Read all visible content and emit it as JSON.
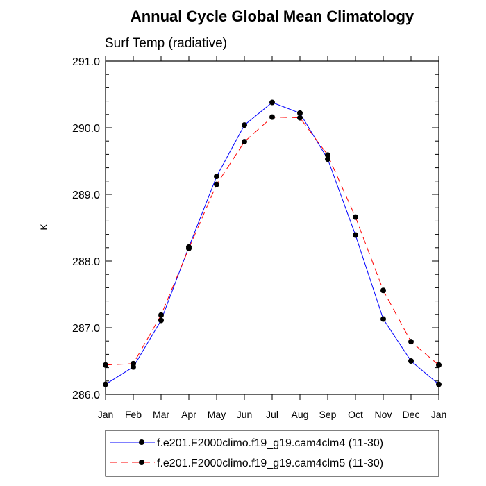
{
  "chart_data": {
    "type": "line",
    "title": "Annual Cycle Global Mean Climatology",
    "subtitle": "Surf Temp (radiative)",
    "xlabel": "",
    "ylabel": "K",
    "categories": [
      "Jan",
      "Feb",
      "Mar",
      "Apr",
      "May",
      "Jun",
      "Jul",
      "Aug",
      "Sep",
      "Oct",
      "Nov",
      "Dec",
      "Jan"
    ],
    "ylim": [
      286.0,
      291.0
    ],
    "yticks": [
      "286.0",
      "287.0",
      "288.0",
      "289.0",
      "290.0",
      "291.0"
    ],
    "grid": false,
    "legend_position": "bottom",
    "series": [
      {
        "name": "f.e201.F2000climo.f19_g19.cam4clm4 (11-30)",
        "color": "#0000ff",
        "style": "solid",
        "values": [
          286.15,
          286.41,
          287.11,
          288.21,
          289.27,
          290.04,
          290.38,
          290.22,
          289.53,
          288.39,
          287.13,
          286.5,
          286.15
        ]
      },
      {
        "name": "f.e201.F2000climo.f19_g19.cam4clm5 (11-30)",
        "color": "#ff0000",
        "style": "dashed",
        "values": [
          286.44,
          286.46,
          287.19,
          288.19,
          289.15,
          289.79,
          290.16,
          290.15,
          289.59,
          288.66,
          287.56,
          286.79,
          286.44
        ]
      }
    ]
  }
}
